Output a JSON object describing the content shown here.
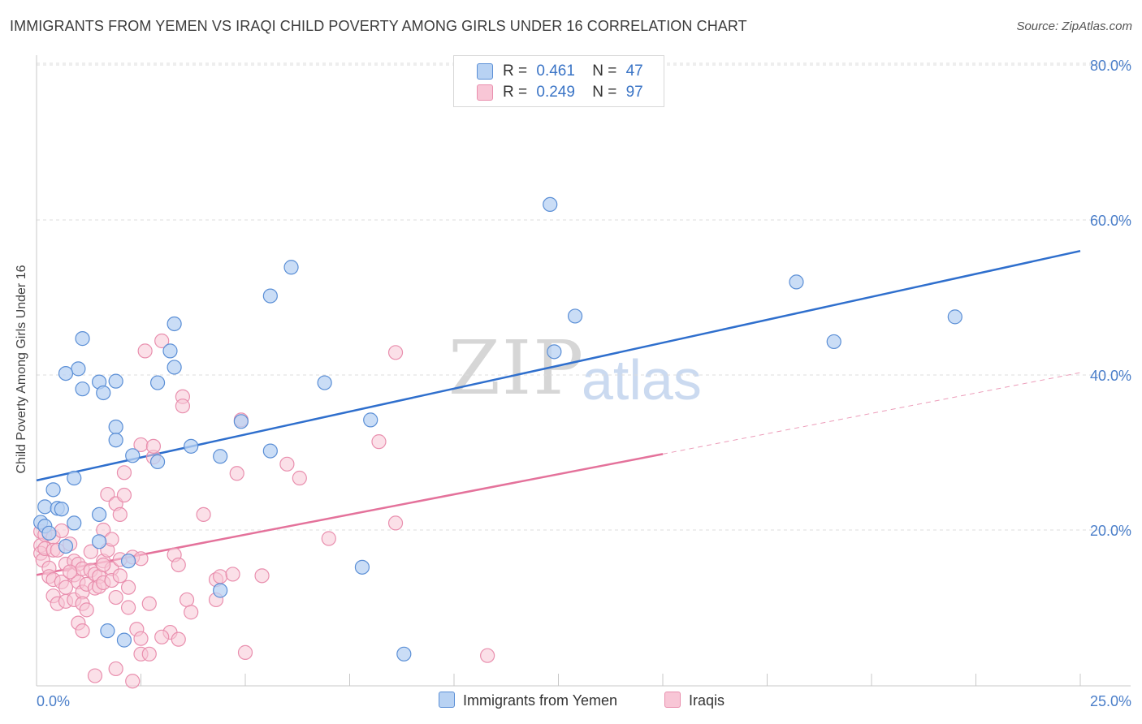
{
  "title": "IMMIGRANTS FROM YEMEN VS IRAQI CHILD POVERTY AMONG GIRLS UNDER 16 CORRELATION CHART",
  "source": "Source: ZipAtlas.com",
  "watermark": {
    "zip": "ZIP",
    "atlas": "atlas"
  },
  "legend_top": [
    {
      "r_label": "R =",
      "r_value": "0.461",
      "n_label": "N =",
      "n_value": "47"
    },
    {
      "r_label": "R =",
      "r_value": "0.249",
      "n_label": "N =",
      "n_value": "97"
    }
  ],
  "legend_bottom": [
    "Immigrants from Yemen",
    "Iraqis"
  ],
  "colors": {
    "yemen_fill": "#b8d2f3",
    "yemen_stroke": "#5b8fd6",
    "yemen_line": "#2f6fcd",
    "iraqi_fill": "#f8c6d6",
    "iraqi_stroke": "#e98fae",
    "iraqi_line": "#e4729b",
    "tick": "#4a7ec9",
    "grid": "#dcdcdc"
  },
  "chart_data": {
    "type": "scatter",
    "title": "IMMIGRANTS FROM YEMEN VS IRAQI CHILD POVERTY AMONG GIRLS UNDER 16 CORRELATION CHART",
    "xlabel": "",
    "ylabel": "Child Poverty Among Girls Under 16",
    "xlim": [
      0,
      25
    ],
    "ylim": [
      0,
      80
    ],
    "x_tick_labels": [
      "0.0%",
      "25.0%"
    ],
    "y_ticks": [
      20,
      40,
      60,
      80
    ],
    "y_tick_labels": [
      "20.0%",
      "40.0%",
      "60.0%",
      "80.0%"
    ],
    "grid": true,
    "legend_position": "top-center",
    "series": [
      {
        "name": "Immigrants from Yemen",
        "R": 0.461,
        "N": 47,
        "trend": {
          "x": [
            0.0,
            25.0
          ],
          "y": [
            26.4,
            56.0
          ]
        },
        "points": [
          [
            0.1,
            21.0
          ],
          [
            0.2,
            20.5
          ],
          [
            0.3,
            19.6
          ],
          [
            0.2,
            23.0
          ],
          [
            0.4,
            25.2
          ],
          [
            0.5,
            22.8
          ],
          [
            0.6,
            22.7
          ],
          [
            0.9,
            26.7
          ],
          [
            0.9,
            20.9
          ],
          [
            0.7,
            17.9
          ],
          [
            1.0,
            40.8
          ],
          [
            0.7,
            40.2
          ],
          [
            1.1,
            44.7
          ],
          [
            1.1,
            38.2
          ],
          [
            1.5,
            39.1
          ],
          [
            1.5,
            22.0
          ],
          [
            1.5,
            18.5
          ],
          [
            1.6,
            37.7
          ],
          [
            1.9,
            39.2
          ],
          [
            1.9,
            33.3
          ],
          [
            1.9,
            31.6
          ],
          [
            2.3,
            29.6
          ],
          [
            2.9,
            39.0
          ],
          [
            2.9,
            28.8
          ],
          [
            3.2,
            43.1
          ],
          [
            3.3,
            46.6
          ],
          [
            3.3,
            41.0
          ],
          [
            3.7,
            30.8
          ],
          [
            4.4,
            29.5
          ],
          [
            4.9,
            34.0
          ],
          [
            5.6,
            30.2
          ],
          [
            5.6,
            50.2
          ],
          [
            6.1,
            53.9
          ],
          [
            6.9,
            39.0
          ],
          [
            7.8,
            15.2
          ],
          [
            8.0,
            34.2
          ],
          [
            8.8,
            4.0
          ],
          [
            12.3,
            62.0
          ],
          [
            12.4,
            43.0
          ],
          [
            12.9,
            47.6
          ],
          [
            18.2,
            52.0
          ],
          [
            19.1,
            44.3
          ],
          [
            22.0,
            47.5
          ],
          [
            1.7,
            7.0
          ],
          [
            2.1,
            5.8
          ],
          [
            2.2,
            16.0
          ],
          [
            4.4,
            12.2
          ]
        ]
      },
      {
        "name": "Iraqis",
        "R": 0.249,
        "N": 97,
        "trend": {
          "x": [
            0.0,
            15.0
          ],
          "y": [
            14.2,
            29.8
          ]
        },
        "trend_dashed": {
          "x": [
            15.0,
            25.0
          ],
          "y": [
            29.8,
            40.3
          ]
        },
        "points": [
          [
            0.1,
            19.8
          ],
          [
            0.1,
            18.0
          ],
          [
            0.1,
            17.0
          ],
          [
            0.15,
            16.1
          ],
          [
            0.2,
            19.4
          ],
          [
            0.2,
            17.6
          ],
          [
            0.3,
            15.1
          ],
          [
            0.3,
            14.0
          ],
          [
            0.4,
            19.1
          ],
          [
            0.4,
            17.4
          ],
          [
            0.4,
            13.6
          ],
          [
            0.4,
            11.5
          ],
          [
            0.5,
            10.5
          ],
          [
            0.6,
            13.3
          ],
          [
            0.6,
            19.9
          ],
          [
            0.7,
            15.6
          ],
          [
            0.7,
            10.8
          ],
          [
            0.7,
            12.6
          ],
          [
            0.8,
            18.2
          ],
          [
            0.9,
            16.0
          ],
          [
            0.9,
            14.2
          ],
          [
            0.9,
            11.0
          ],
          [
            1.0,
            13.3
          ],
          [
            1.0,
            8.0
          ],
          [
            1.0,
            15.6
          ],
          [
            1.1,
            12.0
          ],
          [
            1.1,
            15.0
          ],
          [
            1.1,
            10.5
          ],
          [
            1.2,
            13.0
          ],
          [
            1.2,
            9.7
          ],
          [
            1.3,
            17.2
          ],
          [
            1.3,
            14.8
          ],
          [
            1.4,
            12.5
          ],
          [
            1.4,
            14.3
          ],
          [
            1.5,
            14.0
          ],
          [
            1.5,
            12.7
          ],
          [
            1.6,
            20.0
          ],
          [
            1.6,
            16.0
          ],
          [
            1.6,
            13.2
          ],
          [
            1.7,
            17.4
          ],
          [
            1.7,
            24.6
          ],
          [
            1.8,
            18.8
          ],
          [
            1.8,
            15.0
          ],
          [
            1.8,
            13.5
          ],
          [
            1.9,
            11.3
          ],
          [
            1.9,
            23.4
          ],
          [
            2.0,
            14.1
          ],
          [
            2.0,
            16.2
          ],
          [
            2.0,
            22.0
          ],
          [
            2.1,
            24.5
          ],
          [
            2.1,
            27.4
          ],
          [
            2.2,
            12.6
          ],
          [
            2.2,
            10.0
          ],
          [
            2.3,
            16.5
          ],
          [
            2.4,
            7.2
          ],
          [
            2.5,
            4.0
          ],
          [
            2.5,
            16.3
          ],
          [
            2.5,
            31.0
          ],
          [
            2.6,
            43.1
          ],
          [
            2.7,
            10.5
          ],
          [
            2.8,
            29.4
          ],
          [
            2.8,
            30.8
          ],
          [
            3.0,
            44.4
          ],
          [
            3.2,
            6.8
          ],
          [
            3.3,
            16.8
          ],
          [
            3.4,
            15.5
          ],
          [
            3.5,
            37.2
          ],
          [
            3.5,
            36.0
          ],
          [
            3.6,
            11.0
          ],
          [
            3.7,
            9.4
          ],
          [
            4.0,
            22.0
          ],
          [
            4.3,
            13.6
          ],
          [
            4.3,
            11.0
          ],
          [
            4.4,
            14.0
          ],
          [
            4.7,
            14.3
          ],
          [
            4.8,
            27.3
          ],
          [
            4.9,
            34.2
          ],
          [
            5.0,
            4.2
          ],
          [
            5.4,
            14.1
          ],
          [
            6.0,
            28.5
          ],
          [
            6.3,
            26.7
          ],
          [
            7.0,
            18.9
          ],
          [
            8.6,
            20.9
          ],
          [
            8.6,
            42.9
          ],
          [
            8.2,
            31.4
          ],
          [
            10.8,
            3.8
          ],
          [
            1.4,
            1.2
          ],
          [
            1.9,
            2.1
          ],
          [
            2.3,
            0.5
          ],
          [
            2.5,
            6.0
          ],
          [
            2.7,
            4.0
          ],
          [
            3.0,
            6.2
          ],
          [
            3.4,
            5.9
          ],
          [
            1.1,
            7.0
          ],
          [
            0.5,
            17.4
          ],
          [
            0.8,
            14.6
          ],
          [
            1.6,
            15.5
          ]
        ]
      }
    ]
  }
}
